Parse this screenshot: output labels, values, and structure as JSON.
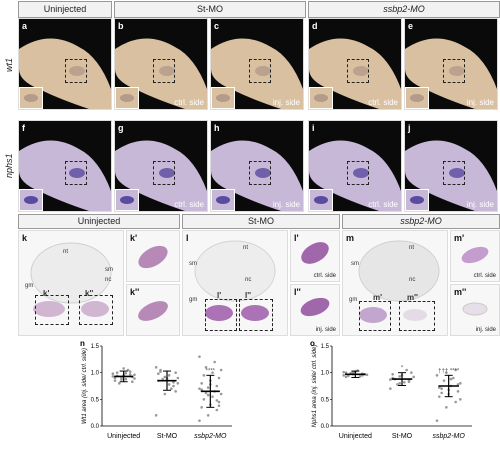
{
  "headers": {
    "uninjected": "Uninjected",
    "st_mo": "St-MO",
    "ssbp2_mo": "ssbp2-MO"
  },
  "row_labels": {
    "wt1": "wt1",
    "nphs1": "nphs1"
  },
  "panels_top": [
    {
      "letter": "a",
      "side": ""
    },
    {
      "letter": "b",
      "side": "ctrl. side"
    },
    {
      "letter": "c",
      "side": "inj. side"
    },
    {
      "letter": "d",
      "side": "ctrl. side"
    },
    {
      "letter": "e",
      "side": "inj. side"
    }
  ],
  "panels_mid": [
    {
      "letter": "f",
      "side": ""
    },
    {
      "letter": "g",
      "side": "ctrl. side"
    },
    {
      "letter": "h",
      "side": "inj. side"
    },
    {
      "letter": "i",
      "side": "ctrl. side"
    },
    {
      "letter": "j",
      "side": "inj. side"
    }
  ],
  "section_headers": {
    "uninjected": "Uninjected",
    "st_mo": "St-MO",
    "ssbp2_mo": "ssbp2-MO"
  },
  "section_panels": {
    "k": {
      "letter": "k",
      "k1": "k'",
      "k2": "k''",
      "labels": [
        "nt",
        "sm",
        "nc",
        "gm"
      ]
    },
    "l": {
      "letter": "l",
      "l1": "l'",
      "l2": "l''",
      "labels": [
        "nt",
        "sm",
        "nc",
        "gm"
      ],
      "side1": "ctrl. side",
      "side2": "inj. side"
    },
    "m": {
      "letter": "m",
      "m1": "m'",
      "m2": "m''",
      "labels": [
        "nt",
        "sm",
        "nc",
        "gm"
      ],
      "side1": "ctrl. side",
      "side2": "inj. side"
    }
  },
  "chart_data": [
    {
      "type": "scatter",
      "panel": "n",
      "ylabel": "Wt1 area (inj. side/ ctrl. side)",
      "categories": [
        "Uninjected",
        "St-MO",
        "ssbp2-MO"
      ],
      "ylim": [
        0,
        1.5
      ],
      "yticks": [
        "0.0",
        "0.5",
        "1.0",
        "1.5"
      ],
      "means": [
        0.93,
        0.85,
        0.65
      ],
      "sd": [
        0.1,
        0.18,
        0.3
      ],
      "significance": [
        "",
        "",
        "****"
      ],
      "spread": [
        [
          0.98,
          0.9,
          1.02,
          0.85,
          0.95,
          0.92,
          1.0,
          0.88,
          0.96,
          0.8,
          1.05,
          0.93,
          0.87,
          0.97,
          0.9,
          1.08,
          0.83,
          0.94,
          0.99,
          0.89
        ],
        [
          0.2,
          0.6,
          0.75,
          0.85,
          0.9,
          1.0,
          1.05,
          0.95,
          0.8,
          0.88,
          0.7,
          1.1,
          0.92,
          0.82,
          0.98,
          0.87,
          0.65,
          1.02,
          0.78,
          0.9
        ],
        [
          0.1,
          0.2,
          0.3,
          0.35,
          0.4,
          0.45,
          0.5,
          0.55,
          0.6,
          0.62,
          0.65,
          0.7,
          0.72,
          0.75,
          0.8,
          0.85,
          0.9,
          0.95,
          1.0,
          1.05,
          1.1,
          1.2,
          1.3,
          0.58,
          0.48,
          0.68,
          0.78,
          0.38
        ]
      ]
    },
    {
      "type": "scatter",
      "panel": "o",
      "ylabel": "Nphs1 area (inj. side/ ctrl. side)",
      "categories": [
        "Uninjected",
        "St-MO",
        "ssbp2-MO"
      ],
      "ylim": [
        0,
        1.5
      ],
      "yticks": [
        "0.0",
        "0.5",
        "1.0",
        "1.5"
      ],
      "means": [
        0.97,
        0.88,
        0.75
      ],
      "sd": [
        0.06,
        0.12,
        0.2
      ],
      "significance": [
        "",
        "*",
        "††† ****"
      ],
      "spread": [
        [
          0.95,
          1.0,
          0.98,
          0.92,
          1.02,
          0.97,
          0.94,
          1.04,
          0.96,
          0.99,
          0.93,
          1.01,
          0.97,
          0.95,
          1.0
        ],
        [
          0.7,
          0.8,
          0.85,
          0.9,
          0.95,
          1.0,
          0.88,
          0.82,
          0.92,
          0.78,
          1.05,
          0.87,
          0.93,
          0.83,
          0.97
        ],
        [
          0.1,
          0.35,
          0.45,
          0.55,
          0.6,
          0.65,
          0.7,
          0.75,
          0.8,
          0.85,
          0.9,
          0.95,
          1.0,
          1.05,
          0.72,
          0.68,
          0.78,
          0.62,
          0.88,
          0.5
        ]
      ]
    }
  ]
}
